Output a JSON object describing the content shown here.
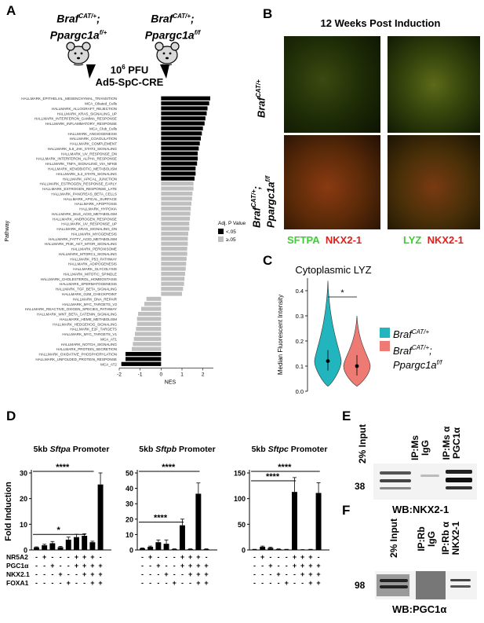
{
  "panels": {
    "a": "A",
    "b": "B",
    "c": "C",
    "d": "D",
    "e": "E",
    "f": "F"
  },
  "panel_a": {
    "mouse_left": {
      "gene1": "Braf",
      "sup1": "CAT/+",
      "sep": ";",
      "gene2": "Ppargc1a",
      "sup2": "f/+"
    },
    "mouse_right": {
      "gene1": "Braf",
      "sup1": "CAT/+",
      "sep": ";",
      "gene2": "Ppargc1a",
      "sup2": "f/f"
    },
    "dose_base": "10",
    "dose_exp": "6",
    "dose_unit": "PFU",
    "virus": "Ad5-SpC-CRE"
  },
  "panel_b": {
    "title": "12 Weeks Post Induction",
    "row1": {
      "gene": "Braf",
      "sup": "CAT/+"
    },
    "row2": {
      "gene1": "Braf",
      "sup1": "CAT/+",
      "sep": ";",
      "gene2": "Ppargc1a",
      "sup2": "f/f"
    },
    "col1": {
      "green": "SFTPA",
      "red": "NKX2-1"
    },
    "col2": {
      "green": "LYZ",
      "red": "NKX2-1"
    }
  },
  "panel_c": {
    "legend": [
      {
        "gene": "Braf",
        "sup": "CAT/+",
        "color": "#22b5bd"
      },
      {
        "gene1": "Braf",
        "sup1": "CAT/+",
        "sep": ";",
        "gene2": "Ppargc1a",
        "sup2": "f/f",
        "color": "#ee7b73"
      }
    ]
  },
  "panel_e": {
    "lanes": [
      "2% Input",
      "IP:Ms IgG",
      "IP:Ms α PGC1α"
    ],
    "marker": "38",
    "wb": "WB:NKX2-1"
  },
  "panel_f": {
    "lanes": [
      "2% Input",
      "IP:Rb IgG",
      "IP:Rb α NKX2-1"
    ],
    "marker": "98",
    "wb": "WB:PGC1α"
  },
  "chart_data": [
    {
      "id": "panel_a_gsea",
      "type": "bar",
      "orientation": "horizontal",
      "xlabel": "NES",
      "ylabel": "Pathway",
      "xlim": [
        -2,
        2.5
      ],
      "xticks": [
        -2,
        -1,
        0,
        1,
        2
      ],
      "legend": {
        "title": "Adj. P Value",
        "placement": "right",
        "entries": [
          {
            "label": "<.05",
            "color": "#000000"
          },
          {
            "label": "≥.05",
            "color": "#bfbfbf"
          }
        ]
      },
      "categories": [
        "HALLMARK_EPITHELIAL_MESENCHYMAL_TRANSITION",
        "MCA_Ciliated_Cells",
        "HALLMARK_ALLOGRAFT_REJECTION",
        "HALLMARK_KRAS_SIGNALING_UP",
        "HALLMARK_INTERFERON_GAMMA_RESPONSE",
        "HALLMARK_INFLAMMATORY_RESPONSE",
        "MCA_Club_Cells",
        "HALLMARK_ANGIOGENESIS",
        "HALLMARK_COAGULATION",
        "HALLMARK_COMPLEMENT",
        "HALLMARK_IL6_JAK_STAT3_SIGNALING",
        "HALLMARK_UV_RESPONSE_DN",
        "HALLMARK_INTERFERON_ALPHA_RESPONSE",
        "HALLMARK_TNFA_SIGNALING_VIA_NFKB",
        "HALLMARK_XENOBIOTIC_METABOLISM",
        "HALLMARK_IL2_STAT5_SIGNALING",
        "HALLMARK_APICAL_JUNCTION",
        "HALLMARK_ESTROGEN_RESPONSE_EARLY",
        "HALLMARK_ESTROGEN_RESPONSE_LATE",
        "HALLMARK_PANCREAS_BETA_CELLS",
        "HALLMARK_APICAL_SURFACE",
        "HALLMARK_APOPTOSIS",
        "HALLMARK_HYPOXIA",
        "HALLMARK_BILE_ACID_METABOLISM",
        "HALLMARK_ANDROGEN_RESPONSE",
        "HALLMARK_UV_RESPONSE_UP",
        "HALLMARK_KRAS_SIGNALING_DN",
        "HALLMARK_MYOGENESIS",
        "HALLMARK_FATTY_ACID_METABOLISM",
        "HALLMARK_PI3K_AKT_MTOR_SIGNALING",
        "HALLMARK_PEROXISOME",
        "HALLMARK_MTORC1_SIGNALING",
        "HALLMARK_P53_PATHWAY",
        "HALLMARK_ADIPOGENESIS",
        "HALLMARK_GLYCOLYSIS",
        "HALLMARK_MITOTIC_SPINDLE",
        "HALLMARK_CHOLESTEROL_HOMEOSTASIS",
        "HALLMARK_SPERMATOGENESIS",
        "HALLMARK_TGF_BETA_SIGNALING",
        "HALLMARK_G2M_CHECKPOINT",
        "HALLMARK_DNA_REPAIR",
        "HALLMARK_MYC_TARGETS_V2",
        "HALLMARK_REACTIVE_OXIGEN_SPECIES_PATHWAY",
        "HALLMARK_WNT_BETA_CATENIN_SIGNALING",
        "HALLMARK_HEME_METABOLISM",
        "HALLMARK_HEDGEHOG_SIGNALING",
        "HALLMARK_E2F_TARGETS",
        "HALLMARK_MYC_TARGETS_V1",
        "MCA_AT1",
        "HALLMARK_NOTCH_SIGNALING",
        "HALLMARK_PROTEIN_SECRETION",
        "HALLMARK_OXIDATIVE_PHOSPHORYLATION",
        "HALLMARK_UNFOLDED_PROTEIN_RESPONSE",
        "MCA_AT2"
      ],
      "values": [
        2.35,
        2.3,
        2.22,
        2.18,
        2.12,
        2.08,
        2.0,
        1.95,
        1.9,
        1.85,
        1.8,
        1.75,
        1.75,
        1.72,
        1.65,
        1.65,
        1.6,
        1.55,
        1.55,
        1.5,
        1.48,
        1.45,
        1.42,
        1.4,
        1.38,
        1.35,
        1.35,
        1.3,
        1.28,
        1.28,
        1.25,
        1.25,
        1.22,
        1.2,
        1.18,
        1.15,
        1.12,
        1.1,
        1.05,
        1.0,
        -0.7,
        -0.8,
        -0.95,
        -1.1,
        -1.15,
        -1.15,
        -1.2,
        -1.25,
        -1.3,
        -1.35,
        -1.4,
        -1.7,
        -1.7,
        -1.9
      ],
      "significant": [
        1,
        1,
        1,
        1,
        1,
        1,
        1,
        1,
        1,
        1,
        1,
        1,
        1,
        1,
        1,
        1,
        1,
        0,
        0,
        0,
        0,
        0,
        0,
        0,
        0,
        0,
        0,
        0,
        0,
        0,
        0,
        0,
        0,
        0,
        0,
        0,
        0,
        0,
        0,
        0,
        0,
        0,
        0,
        0,
        0,
        0,
        0,
        0,
        0,
        0,
        0,
        1,
        1,
        1
      ]
    },
    {
      "id": "panel_c_violin",
      "type": "violin",
      "title": "Cytoplasmic LYZ",
      "ylabel": "Median Fluorescent Intensity",
      "ylim": [
        0,
        0.45
      ],
      "yticks": [
        0.0,
        0.1,
        0.2,
        0.3,
        0.4
      ],
      "significance": "*",
      "series": [
        {
          "median": 0.12,
          "min": 0.02,
          "max": 0.44,
          "color": "#22b5bd"
        },
        {
          "median": 0.1,
          "min": 0.02,
          "max": 0.3,
          "color": "#ee7b73"
        }
      ]
    },
    {
      "id": "panel_d_luciferase",
      "type": "bar",
      "ylabel": "Fold Induction",
      "row_labels": [
        "NR5A2",
        "PGC1α",
        "NKX2.1",
        "FOXA1"
      ],
      "conditions": [
        [
          "-",
          "-",
          "-",
          "-"
        ],
        [
          "+",
          "-",
          "-",
          "-"
        ],
        [
          "-",
          "+",
          "-",
          "-"
        ],
        [
          "-",
          "-",
          "+",
          "-"
        ],
        [
          "-",
          "-",
          "-",
          "+"
        ],
        [
          "+",
          "+",
          "-",
          "-"
        ],
        [
          "+",
          "+",
          "+",
          "-"
        ],
        [
          "+",
          "+",
          "+",
          "+"
        ],
        [
          "-",
          "+",
          "+",
          "+"
        ],
        [
          "+",
          "-",
          "+",
          "+"
        ]
      ],
      "subplots": [
        {
          "gene": "Sftpa",
          "title_prefix": "5kb ",
          "title_suffix": " Promoter",
          "ylim": [
            0,
            30
          ],
          "yticks": [
            0,
            10,
            20,
            30
          ],
          "values": [
            1,
            1.8,
            2.6,
            1.1,
            4,
            5,
            5.5,
            3,
            25.5,
            0
          ],
          "errors": [
            0.2,
            0.4,
            0.7,
            0.3,
            1.0,
            1.1,
            0.8,
            0.4,
            4.5,
            0
          ],
          "significance": [
            {
              "label": "****",
              "level": "upper"
            },
            {
              "label": "*",
              "level": "lower"
            }
          ]
        },
        {
          "gene": "Sftpb",
          "title_prefix": "5kb ",
          "title_suffix": " Promoter",
          "ylim": [
            0,
            50
          ],
          "yticks": [
            0,
            10,
            20,
            30,
            40,
            50
          ],
          "values": [
            1,
            2,
            5,
            4,
            0.5,
            16,
            0.5,
            36.5,
            0.5,
            0
          ],
          "errors": [
            0.3,
            0.5,
            1.5,
            2.5,
            0.2,
            4.0,
            0.2,
            7.0,
            0.2,
            0
          ],
          "significance": [
            {
              "label": "****",
              "level": "upper"
            },
            {
              "label": "****",
              "level": "lower"
            }
          ]
        },
        {
          "gene": "Sftpc",
          "title_prefix": "5kb ",
          "title_suffix": " Promoter",
          "ylim": [
            0,
            150
          ],
          "yticks": [
            0,
            50,
            100,
            150
          ],
          "values": [
            1,
            6,
            4,
            1.5,
            1,
            113,
            0.5,
            1,
            111,
            0
          ],
          "errors": [
            0.3,
            1.5,
            1.5,
            0.5,
            0.3,
            28,
            0.2,
            0.3,
            20,
            0
          ],
          "significance": [
            {
              "label": "****",
              "level": "upper"
            },
            {
              "label": "****",
              "level": "lower"
            }
          ]
        }
      ]
    }
  ]
}
